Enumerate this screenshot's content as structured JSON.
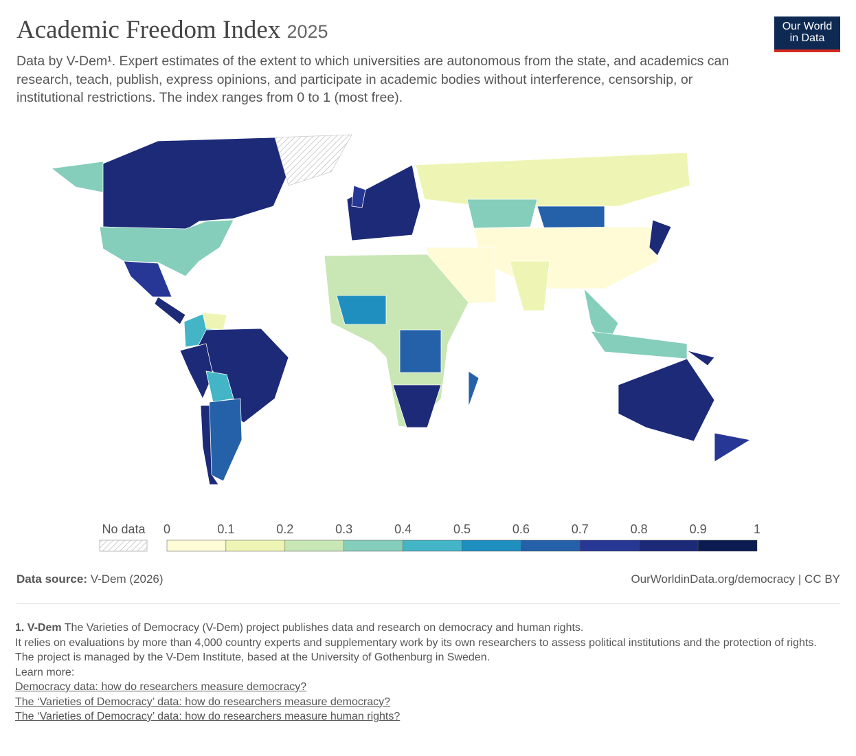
{
  "header": {
    "title": "Academic Freedom Index",
    "year": "2025",
    "subtitle": "Data by V-Dem¹. Expert estimates of the extent to which universities are autonomous from the state, and academics can research, teach, publish, express opinions, and participate in academic bodies without interference, censorship, or institutional restrictions. The index ranges from 0 to 1 (most free).",
    "logo": [
      "Our World",
      "in Data"
    ]
  },
  "legend": {
    "no_data": "No data",
    "ticks": [
      0,
      0.1,
      0.2,
      0.3,
      0.4,
      0.5,
      0.6,
      0.7,
      0.8,
      0.9,
      1
    ],
    "colors": [
      "#fefbd6",
      "#eef5b4",
      "#c9e7b4",
      "#84cebb",
      "#44b5c6",
      "#1e8fbf",
      "#2461a8",
      "#263795",
      "#1c2a78",
      "#0c1c52"
    ]
  },
  "footer": {
    "source_label": "Data source:",
    "source": "V-Dem (2026)",
    "url": "OurWorldinData.org/democracy | CC BY"
  },
  "notes": {
    "heading": "1. V-Dem",
    "intro": "The Varieties of Democracy (V-Dem) project publishes data and research on democracy and human rights.",
    "lines": [
      "It relies on evaluations by more than 4,000 country experts and supplementary work by its own researchers to assess political institutions and the protection of rights.",
      "The project is managed by the V-Dem Institute, based at the University of Gothenburg in Sweden.",
      "Learn more:"
    ],
    "links": [
      "Democracy data: how do researchers measure democracy?",
      "The ‘Varieties of Democracy’ data: how do researchers measure democracy?",
      "The ‘Varieties of Democracy’ data: how do researchers measure human rights?"
    ]
  }
}
